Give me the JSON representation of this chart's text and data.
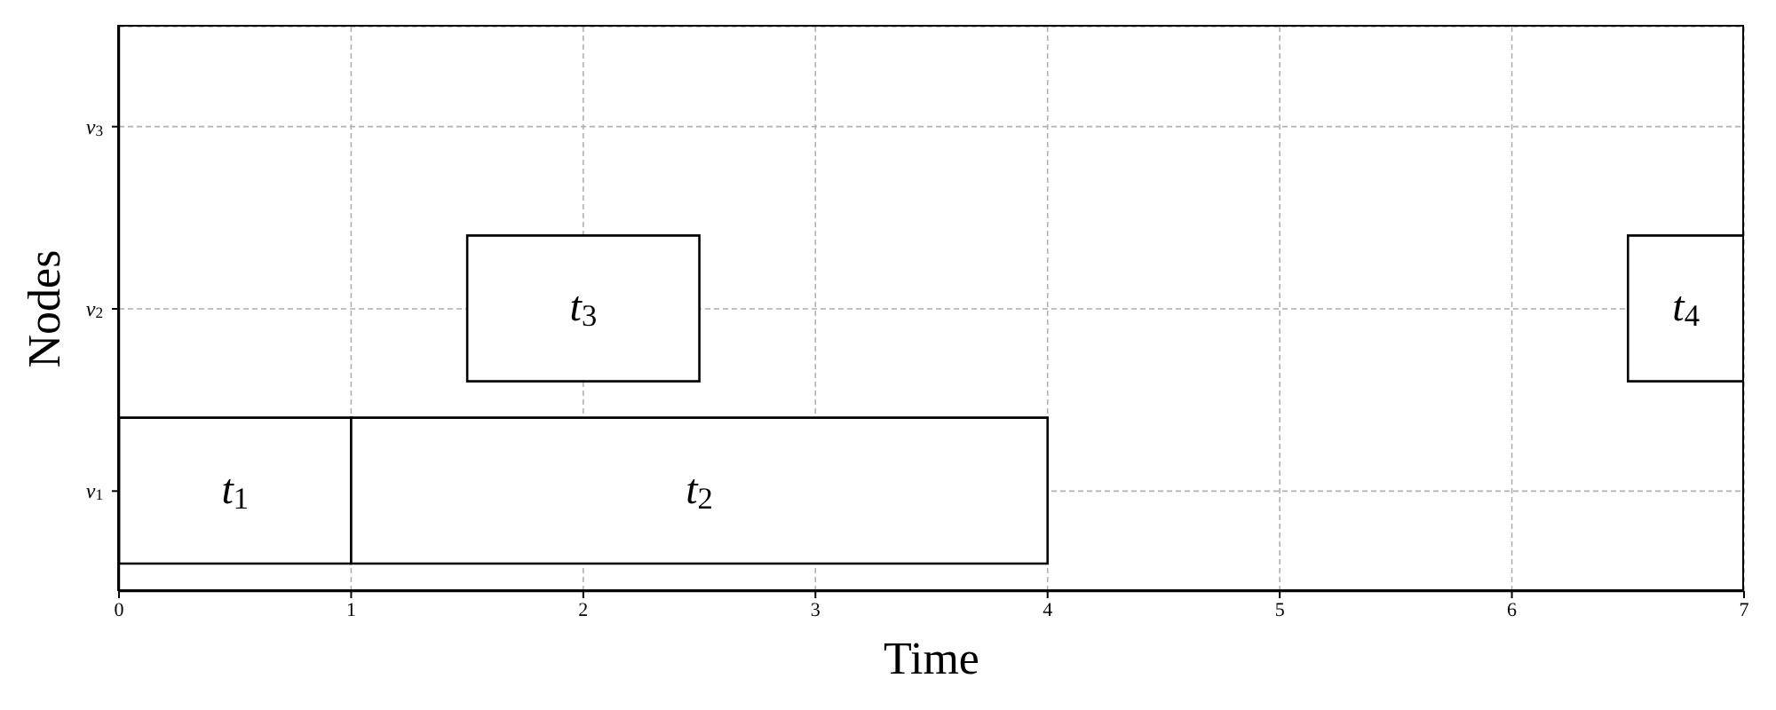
{
  "chart_data": {
    "type": "bar",
    "orientation": "horizontal",
    "xlabel": "Time",
    "ylabel": "Nodes",
    "categories": [
      "v$_{3}$",
      "v$_{2}$",
      "v$_{1}$"
    ],
    "series": [
      {
        "name": "t$_{1}$",
        "color": "#ffffff",
        "values": [
          null,
          null,
          1
        ],
        "base": [
          null,
          null,
          0
        ]
      },
      {
        "name": "t$_{2}$",
        "color": "#ffffff",
        "values": [
          null,
          null,
          3
        ],
        "base": [
          null,
          null,
          1
        ]
      },
      {
        "name": "t$_{3}$",
        "color": "#ffffff",
        "values": [
          null,
          1,
          null
        ],
        "base": [
          null,
          1.5,
          null
        ]
      },
      {
        "name": "t$_{4}$",
        "color": "#ffffff",
        "values": [
          null,
          0.5,
          null
        ],
        "base": [
          null,
          6.5,
          null
        ]
      }
    ],
    "xlim": [
      0,
      7
    ],
    "xticks": [
      0,
      1,
      2,
      3,
      4,
      5,
      6,
      7
    ],
    "grid": true
  }
}
